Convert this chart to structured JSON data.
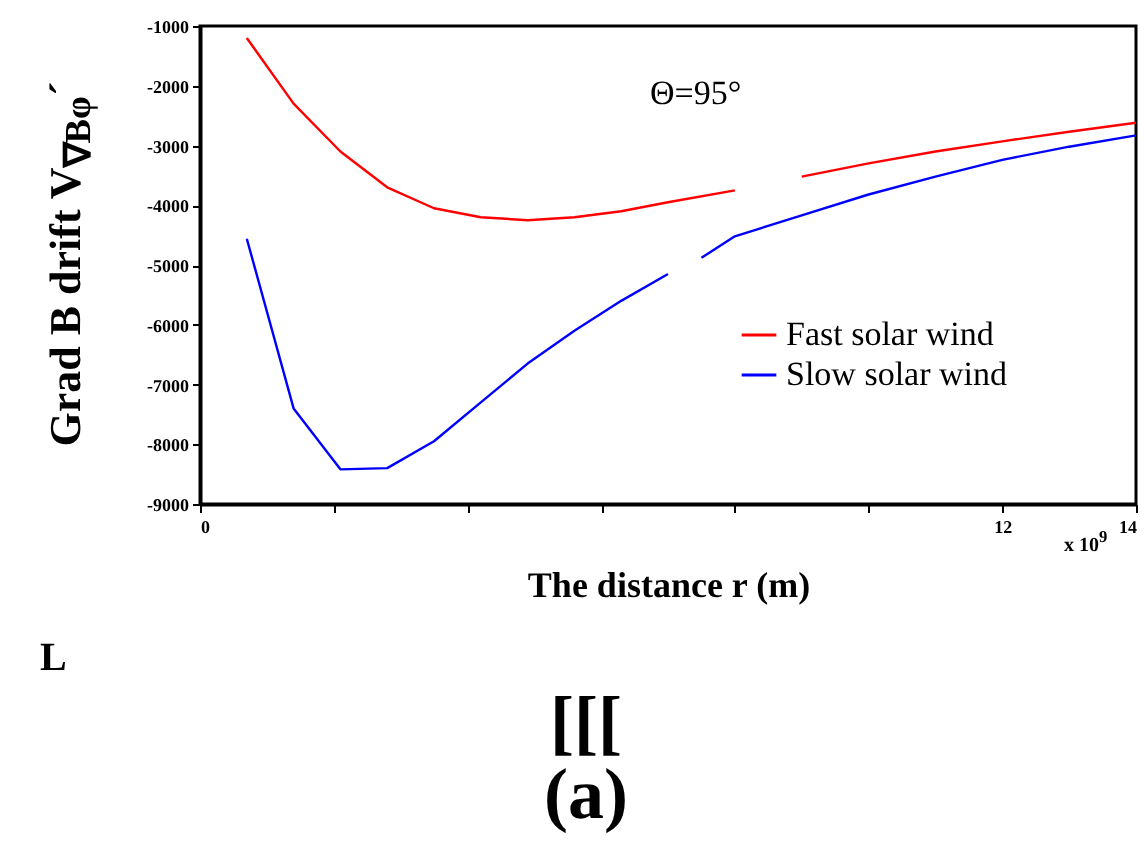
{
  "chart_data": {
    "type": "line",
    "xlabel": "The distance r (m)",
    "ylabel": "Grad B drift  V$_{∇Bφ}$´",
    "xlim": [
      0,
      14
    ],
    "xticks": [
      0,
      {
        "value": 2,
        "label": null
      },
      {
        "value": 4,
        "label": null
      },
      {
        "value": 6,
        "label": null
      },
      {
        "value": 8,
        "label": null
      },
      {
        "value": 10,
        "label": null
      },
      12,
      14
    ],
    "ylim": [
      -9000,
      -1000
    ],
    "yticks": [
      -9000,
      -8000,
      -7000,
      -6000,
      -5000,
      -4000,
      -3000,
      -2000,
      -1000
    ],
    "legend": "right",
    "grid": false,
    "series": [
      {
        "name": "Fast solar wind",
        "color": "#ff0000",
        "x": [
          0.7,
          1.4,
          2.1,
          2.8,
          3.5,
          4.2,
          4.9,
          5.6,
          6.3,
          7,
          8,
          8.5,
          9,
          10,
          11,
          12,
          13,
          14
        ],
        "values": [
          -1200,
          -2300,
          -3100,
          -3700,
          -4050,
          -4200,
          -4250,
          -4200,
          -4100,
          -3950,
          -3750,
          null,
          -3520,
          -3300,
          -3100,
          -2930,
          -2770,
          -2620
        ]
      },
      {
        "name": "Slow solar wind",
        "color": "#0000ff",
        "x": [
          0.7,
          1.4,
          2.1,
          2.8,
          3.5,
          4.2,
          4.9,
          5.6,
          6.3,
          7,
          7.3,
          7.5,
          8,
          9,
          10,
          11,
          12,
          13,
          14
        ],
        "values": [
          -4560,
          -7400,
          -8420,
          -8400,
          -7950,
          -7300,
          -6650,
          -6100,
          -5600,
          -5150,
          null,
          -4880,
          -4520,
          -4170,
          -3820,
          -3520,
          -3240,
          -3020,
          -2830
        ]
      }
    ],
    "annotations": [
      "Θ=95°",
      "x 10$^{9}$",
      "L",
      "[[[",
      "(a)"
    ]
  }
}
